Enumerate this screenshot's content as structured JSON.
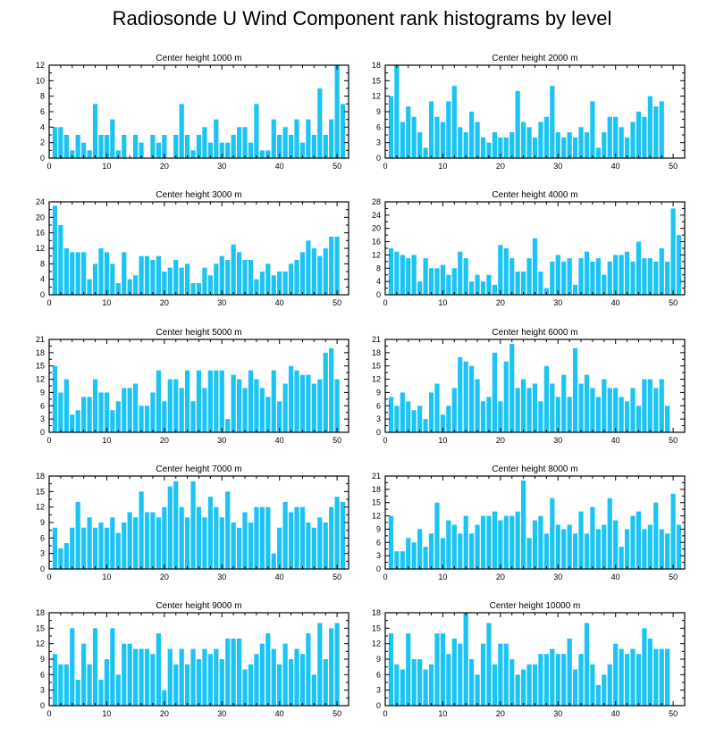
{
  "figure": {
    "title": "Radiosonde U Wind Component rank histograms by level",
    "bar_color": "#1cc4f4"
  },
  "chart_data": [
    {
      "type": "bar",
      "title": "Center height 1000 m",
      "xlim": [
        0,
        52
      ],
      "ylim": [
        0,
        12
      ],
      "xticks": [
        0,
        10,
        20,
        30,
        40,
        50
      ],
      "yticks": [
        0,
        2,
        4,
        6,
        8,
        10,
        12
      ],
      "values": [
        4,
        4,
        3,
        1,
        3,
        2,
        1,
        7,
        3,
        3,
        5,
        1,
        3,
        0,
        3,
        2,
        0,
        3,
        2,
        3,
        0,
        3,
        7,
        3,
        1,
        3,
        4,
        2,
        5,
        2,
        2,
        3,
        4,
        4,
        2,
        7,
        1,
        1,
        5,
        3,
        4,
        3,
        5,
        2,
        5,
        3,
        9,
        3,
        5,
        12,
        7
      ]
    },
    {
      "type": "bar",
      "title": "Center height 2000 m",
      "xlim": [
        0,
        52
      ],
      "ylim": [
        0,
        18
      ],
      "xticks": [
        0,
        10,
        20,
        30,
        40,
        50
      ],
      "yticks": [
        0,
        3,
        6,
        9,
        12,
        15,
        18
      ],
      "values": [
        12,
        18,
        7,
        10,
        8,
        5,
        2,
        11,
        8,
        7,
        11,
        14,
        6,
        5,
        9,
        7,
        4,
        3,
        5,
        4,
        4,
        5,
        13,
        7,
        6,
        4,
        7,
        8,
        14,
        5,
        4,
        5,
        4,
        6,
        5,
        11,
        2,
        5,
        8,
        8,
        6,
        4,
        7,
        9,
        8,
        12,
        10,
        11
      ]
    },
    {
      "type": "bar",
      "title": "Center height 3000 m",
      "xlim": [
        0,
        52
      ],
      "ylim": [
        0,
        24
      ],
      "xticks": [
        0,
        10,
        20,
        30,
        40,
        50
      ],
      "yticks": [
        0,
        4,
        8,
        12,
        16,
        20,
        24
      ],
      "values": [
        23,
        18,
        12,
        11,
        11,
        11,
        4,
        8,
        12,
        11,
        8,
        3,
        11,
        4,
        5,
        10,
        10,
        9,
        10,
        6,
        7,
        9,
        7,
        8,
        3,
        3,
        7,
        5,
        8,
        10,
        9,
        13,
        11,
        9,
        9,
        4,
        6,
        8,
        5,
        6,
        6,
        8,
        9,
        11,
        14,
        12,
        10,
        12,
        15,
        15
      ]
    },
    {
      "type": "bar",
      "title": "Center height 4000 m",
      "xlim": [
        0,
        52
      ],
      "ylim": [
        0,
        28
      ],
      "xticks": [
        0,
        10,
        20,
        30,
        40,
        50
      ],
      "yticks": [
        0,
        4,
        8,
        12,
        16,
        20,
        24,
        28
      ],
      "values": [
        14,
        13,
        12,
        11,
        12,
        4,
        11,
        8,
        8,
        9,
        6,
        8,
        13,
        11,
        4,
        6,
        4,
        6,
        3,
        15,
        14,
        11,
        7,
        7,
        11,
        17,
        7,
        2,
        10,
        12,
        10,
        11,
        3,
        11,
        13,
        10,
        11,
        6,
        10,
        12,
        12,
        13,
        10,
        16,
        11,
        11,
        10,
        14,
        10,
        26,
        18
      ]
    },
    {
      "type": "bar",
      "title": "Center height 5000 m",
      "xlim": [
        0,
        52
      ],
      "ylim": [
        0,
        21
      ],
      "xticks": [
        0,
        10,
        20,
        30,
        40,
        50
      ],
      "yticks": [
        0,
        3,
        6,
        9,
        12,
        15,
        18,
        21
      ],
      "values": [
        15,
        9,
        12,
        4,
        5,
        8,
        8,
        12,
        9,
        9,
        5,
        7,
        10,
        10,
        11,
        6,
        6,
        9,
        14,
        7,
        12,
        12,
        10,
        14,
        7,
        14,
        10,
        14,
        14,
        14,
        3,
        13,
        12,
        10,
        14,
        12,
        10,
        8,
        14,
        7,
        11,
        15,
        14,
        13,
        13,
        11,
        12,
        18,
        19,
        12
      ]
    },
    {
      "type": "bar",
      "title": "Center height 6000 m",
      "xlim": [
        0,
        52
      ],
      "ylim": [
        0,
        21
      ],
      "xticks": [
        0,
        10,
        20,
        30,
        40,
        50
      ],
      "yticks": [
        0,
        3,
        6,
        9,
        12,
        15,
        18,
        21
      ],
      "values": [
        8,
        6,
        9,
        7,
        5,
        6,
        3,
        9,
        11,
        4,
        6,
        10,
        17,
        16,
        15,
        12,
        7,
        8,
        18,
        7,
        16,
        20,
        10,
        12,
        10,
        11,
        7,
        15,
        11,
        8,
        13,
        8,
        19,
        11,
        13,
        10,
        8,
        12,
        10,
        10,
        8,
        7,
        10,
        6,
        12,
        12,
        10,
        12,
        6
      ]
    },
    {
      "type": "bar",
      "title": "Center height 7000 m",
      "xlim": [
        0,
        52
      ],
      "ylim": [
        0,
        18
      ],
      "xticks": [
        0,
        10,
        20,
        30,
        40,
        50
      ],
      "yticks": [
        0,
        3,
        6,
        9,
        12,
        15,
        18
      ],
      "values": [
        8,
        4,
        5,
        8,
        13,
        8,
        10,
        8,
        9,
        8,
        10,
        7,
        9,
        11,
        10,
        15,
        11,
        11,
        10,
        12,
        16,
        17,
        12,
        10,
        17,
        12,
        10,
        14,
        12,
        10,
        15,
        9,
        8,
        11,
        9,
        12,
        12,
        12,
        3,
        8,
        13,
        11,
        12,
        12,
        9,
        8,
        10,
        9,
        12,
        14,
        13
      ]
    },
    {
      "type": "bar",
      "title": "Center height 8000 m",
      "xlim": [
        0,
        52
      ],
      "ylim": [
        0,
        21
      ],
      "xticks": [
        0,
        10,
        20,
        30,
        40,
        50
      ],
      "yticks": [
        0,
        3,
        6,
        9,
        12,
        15,
        18,
        21
      ],
      "values": [
        12,
        4,
        4,
        7,
        6,
        9,
        5,
        8,
        15,
        7,
        11,
        10,
        8,
        12,
        8,
        10,
        12,
        12,
        13,
        11,
        12,
        12,
        13,
        20,
        7,
        11,
        12,
        8,
        16,
        10,
        9,
        10,
        8,
        13,
        8,
        14,
        9,
        10,
        16,
        11,
        5,
        9,
        12,
        13,
        9,
        10,
        15,
        9,
        8,
        17,
        10
      ]
    },
    {
      "type": "bar",
      "title": "Center height 9000 m",
      "xlim": [
        0,
        52
      ],
      "ylim": [
        0,
        18
      ],
      "xticks": [
        0,
        10,
        20,
        30,
        40,
        50
      ],
      "yticks": [
        0,
        3,
        6,
        9,
        12,
        15,
        18
      ],
      "values": [
        10,
        8,
        8,
        15,
        5,
        12,
        8,
        15,
        5,
        9,
        15,
        6,
        12,
        12,
        11,
        11,
        11,
        10,
        14,
        3,
        11,
        8,
        11,
        8,
        11,
        9,
        11,
        10,
        11,
        9,
        13,
        13,
        13,
        7,
        8,
        10,
        12,
        14,
        11,
        8,
        12,
        9,
        11,
        10,
        14,
        6,
        16,
        9,
        15,
        16
      ]
    },
    {
      "type": "bar",
      "title": "Center height 10000 m",
      "xlim": [
        0,
        52
      ],
      "ylim": [
        0,
        18
      ],
      "xticks": [
        0,
        10,
        20,
        30,
        40,
        50
      ],
      "yticks": [
        0,
        3,
        6,
        9,
        12,
        15,
        18
      ],
      "values": [
        14,
        8,
        7,
        14,
        9,
        9,
        7,
        8,
        14,
        14,
        10,
        13,
        12,
        18,
        9,
        6,
        12,
        16,
        8,
        12,
        12,
        9,
        6,
        7,
        8,
        8,
        10,
        10,
        11,
        10,
        10,
        13,
        7,
        10,
        16,
        8,
        4,
        6,
        8,
        12,
        11,
        10,
        11,
        10,
        15,
        13,
        11,
        11,
        11
      ]
    }
  ]
}
